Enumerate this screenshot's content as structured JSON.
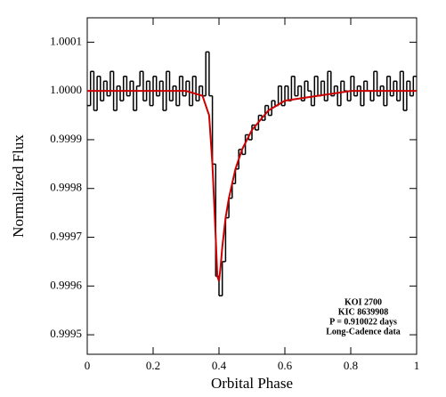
{
  "chart_data": {
    "type": "step-line",
    "xlabel": "Orbital Phase",
    "ylabel": "Normalized Flux",
    "annotations": [
      "KOI 2700",
      "KIC 8639908",
      "P = 0.910022 days",
      "Long-Cadence data"
    ],
    "xlim": [
      0,
      1
    ],
    "xticks": [
      0,
      0.2,
      0.4,
      0.6,
      0.8,
      1
    ],
    "ylim": [
      0.99946,
      1.00015
    ],
    "yticks": [
      0.9995,
      0.9996,
      0.9997,
      0.9998,
      0.9999,
      {
        "value": 1,
        "label": "1.0000"
      },
      1.0001
    ],
    "series": [
      {
        "name": "data",
        "kind": "step",
        "color": "#000000",
        "x": [
          0.005,
          0.015,
          0.025,
          0.035,
          0.045,
          0.055,
          0.065,
          0.075,
          0.085,
          0.095,
          0.105,
          0.115,
          0.125,
          0.135,
          0.145,
          0.155,
          0.165,
          0.175,
          0.185,
          0.195,
          0.205,
          0.215,
          0.225,
          0.235,
          0.245,
          0.255,
          0.265,
          0.275,
          0.285,
          0.295,
          0.305,
          0.315,
          0.325,
          0.335,
          0.345,
          0.355,
          0.365,
          0.375,
          0.385,
          0.395,
          0.405,
          0.415,
          0.425,
          0.435,
          0.445,
          0.455,
          0.465,
          0.475,
          0.485,
          0.495,
          0.505,
          0.515,
          0.525,
          0.535,
          0.545,
          0.555,
          0.565,
          0.575,
          0.585,
          0.595,
          0.605,
          0.615,
          0.625,
          0.635,
          0.645,
          0.655,
          0.665,
          0.675,
          0.685,
          0.695,
          0.705,
          0.715,
          0.725,
          0.735,
          0.745,
          0.755,
          0.765,
          0.775,
          0.785,
          0.795,
          0.805,
          0.815,
          0.825,
          0.835,
          0.845,
          0.855,
          0.865,
          0.875,
          0.885,
          0.895,
          0.905,
          0.915,
          0.925,
          0.935,
          0.945,
          0.955,
          0.965,
          0.975,
          0.985,
          0.995
        ],
        "values": [
          0.99997,
          1.00004,
          0.99996,
          1.00003,
          0.99998,
          1.00002,
          0.99999,
          1.00004,
          0.99996,
          1.00001,
          0.99998,
          1.00003,
          0.99999,
          1.00002,
          0.99996,
          1.00001,
          1.00004,
          0.99998,
          1.00002,
          0.99997,
          1.00003,
          0.99999,
          1.00002,
          0.99996,
          1.00004,
          0.99998,
          1.00001,
          0.99997,
          1.00003,
          0.99999,
          1.00002,
          0.99997,
          1.00003,
          0.99998,
          1.00001,
          0.99999,
          1.00008,
          0.99999,
          0.99985,
          0.99962,
          0.99958,
          0.99965,
          0.99974,
          0.99978,
          0.99981,
          0.99984,
          0.99988,
          0.99987,
          0.99991,
          0.9999,
          0.99993,
          0.99992,
          0.99995,
          0.99994,
          0.99997,
          0.99995,
          0.99998,
          0.99997,
          1.00001,
          0.99997,
          1.00001,
          0.99998,
          1.00003,
          0.99999,
          1.00001,
          0.99998,
          1.00002,
          1,
          0.99997,
          1.00003,
          0.99999,
          1.00002,
          0.99998,
          1.00004,
          0.99999,
          1.00001,
          0.99997,
          1.00002,
          1,
          0.99998,
          1.00003,
          0.99999,
          1.00001,
          0.99997,
          1.00002,
          1,
          0.99998,
          1.00004,
          0.99999,
          1.00001,
          0.99997,
          1.00003,
          0.99999,
          1.00002,
          0.99998,
          1.00004,
          0.99996,
          1.00002,
          0.99999,
          1.00003
        ]
      },
      {
        "name": "model",
        "kind": "line",
        "color": "#cc0000",
        "x": [
          0,
          0.3,
          0.35,
          0.37,
          0.38,
          0.39,
          0.395,
          0.4,
          0.405,
          0.41,
          0.42,
          0.43,
          0.45,
          0.47,
          0.5,
          0.55,
          0.6,
          0.7,
          0.8,
          1
        ],
        "values": [
          1,
          1,
          0.99999,
          0.99995,
          0.99985,
          0.9997,
          0.99962,
          0.99961,
          0.99964,
          0.99968,
          0.99974,
          0.99978,
          0.99984,
          0.99988,
          0.99992,
          0.99996,
          0.99998,
          0.99999,
          1,
          1
        ]
      }
    ]
  }
}
